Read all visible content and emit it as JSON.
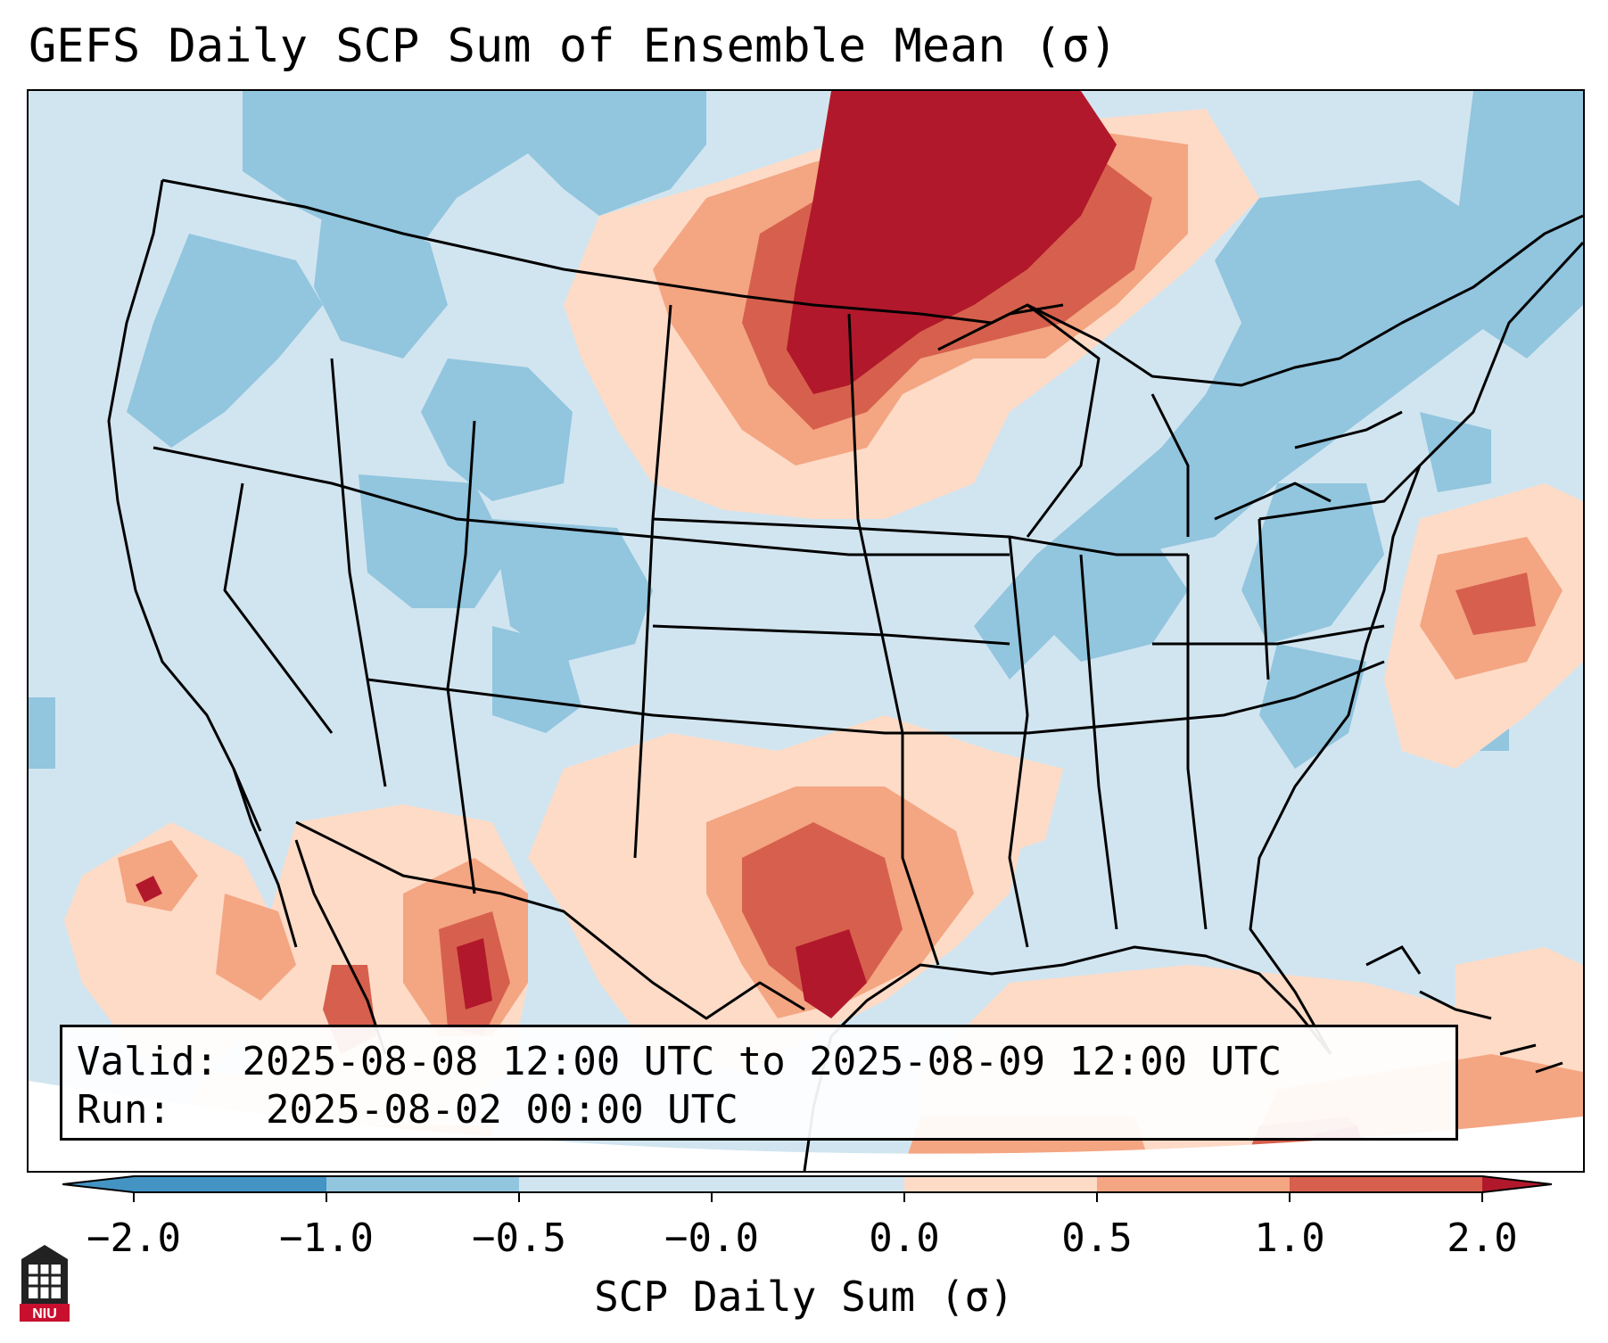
{
  "title": "GEFS Daily SCP Sum of Ensemble Mean (σ)",
  "info": {
    "valid_label": "Valid:",
    "valid_value": "2025-08-08 12:00 UTC to 2025-08-09 12:00 UTC",
    "run_label": "Run:",
    "run_value": "2025-08-02 00:00 UTC"
  },
  "colorbar": {
    "label": "SCP Daily Sum (σ)",
    "ticks": [
      "−2.0",
      "−1.0",
      "−0.5",
      "−0.0",
      "0.0",
      "0.5",
      "1.0",
      "2.0"
    ],
    "colors": {
      "below_min": "#4393c3",
      "bin_m2_m1": "#4393c3",
      "bin_m1_m05": "#92c5de",
      "bin_m05_0": "#d1e5f0",
      "bin_0_05": "#fddbc7",
      "bin_05_1": "#f4a582",
      "bin_1_2": "#d6604d",
      "above_max": "#b2182b"
    }
  },
  "logo": {
    "name": "NIU",
    "text": "NIU"
  },
  "regions": {
    "upper_midwest_max": "high",
    "texas_oklahoma_max": "high",
    "mexico_sierra_madre": "high",
    "west_and_east_us": "slightly below normal"
  }
}
